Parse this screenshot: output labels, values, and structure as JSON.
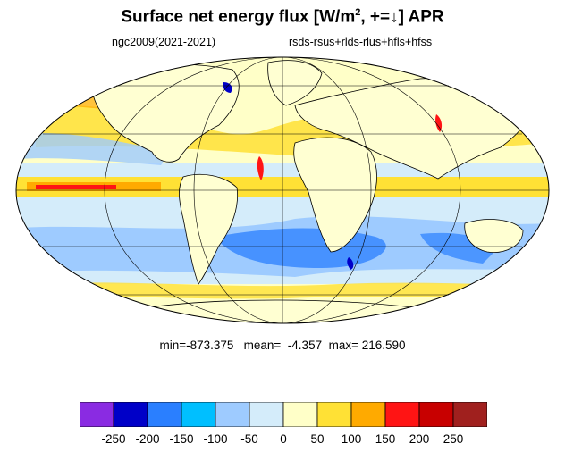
{
  "title": {
    "main": "Surface net energy flux [W/m",
    "sup": "2",
    "rest": ", +=↓] APR"
  },
  "subtitle_left": "ngc2009(2021-2021)",
  "subtitle_right": "rsds-rsus+rlds-rlus+hfls+hfss",
  "stats": {
    "text": "min=-873.375   mean=  -4.357  max= 216.590"
  },
  "colorbar": {
    "colors": [
      "#8a2be2",
      "#0000c8",
      "#2a7fff",
      "#00bfff",
      "#9ecbff",
      "#d4ecfa",
      "#ffffc8",
      "#ffe135",
      "#ffaa00",
      "#ff1414",
      "#c80000",
      "#a0201e"
    ],
    "ticks": [
      "-250",
      "-200",
      "-150",
      "-100",
      "-50",
      "0",
      "50",
      "100",
      "150",
      "200",
      "250"
    ]
  },
  "map_colors": {
    "ocean_neutral_pos": "#ffffc8",
    "ocean_neutral_neg": "#d4ecfa",
    "band_warm": "#ffe135",
    "band_orange": "#ffaa00",
    "band_red": "#ff1414",
    "band_blue": "#9ecbff",
    "band_mid_blue": "#2a7fff",
    "land": "#ffffd2",
    "coast": "#000000",
    "grid": "#000000"
  }
}
